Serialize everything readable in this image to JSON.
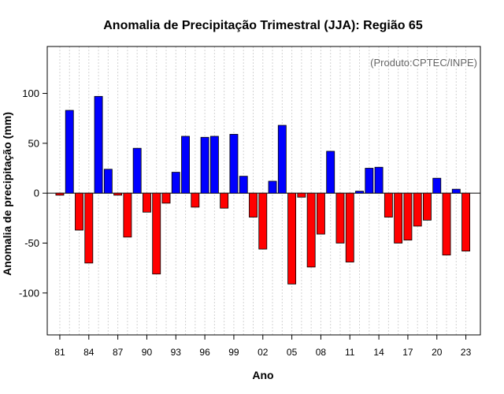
{
  "chart_data": {
    "type": "bar",
    "title": "Anomalia de Precipitação Trimestral (JJA): Região 65",
    "credit": "(Produto:CPTEC/INPE)",
    "xlabel": "Ano",
    "ylabel": "Anomalia de precipitação (mm)",
    "ylim": [
      -142,
      147
    ],
    "yticks": [
      -100,
      -50,
      0,
      50,
      100
    ],
    "xlim": [
      1979.7,
      2024.5
    ],
    "xticks": [
      1981,
      1984,
      1987,
      1990,
      1993,
      1996,
      1999,
      2002,
      2005,
      2008,
      2011,
      2014,
      2017,
      2020,
      2023
    ],
    "xtick_labels": [
      "81",
      "84",
      "87",
      "90",
      "93",
      "96",
      "99",
      "02",
      "05",
      "08",
      "11",
      "14",
      "17",
      "20",
      "23"
    ],
    "grid": true,
    "colors": {
      "positive": "#0000ff",
      "negative": "#ff0000",
      "grid": "#d3d3d3",
      "zero_line": "#000000"
    },
    "categories": [
      1981,
      1982,
      1983,
      1984,
      1985,
      1986,
      1987,
      1988,
      1989,
      1990,
      1991,
      1992,
      1993,
      1994,
      1995,
      1996,
      1997,
      1998,
      1999,
      2000,
      2001,
      2002,
      2003,
      2004,
      2005,
      2006,
      2007,
      2008,
      2009,
      2010,
      2011,
      2012,
      2013,
      2014,
      2015,
      2016,
      2017,
      2018,
      2019,
      2020,
      2021,
      2022,
      2023
    ],
    "values": [
      -2,
      83,
      -37,
      -70,
      97,
      24,
      -2,
      -44,
      45,
      -19,
      -81,
      -10,
      21,
      57,
      -14,
      56,
      57,
      -15,
      59,
      17,
      -24,
      -56,
      12,
      68,
      -91,
      -4,
      -74,
      -41,
      42,
      -50,
      -69,
      2,
      25,
      26,
      -24,
      -50,
      -47,
      -33,
      -27,
      15,
      -62,
      4,
      -58
    ]
  }
}
